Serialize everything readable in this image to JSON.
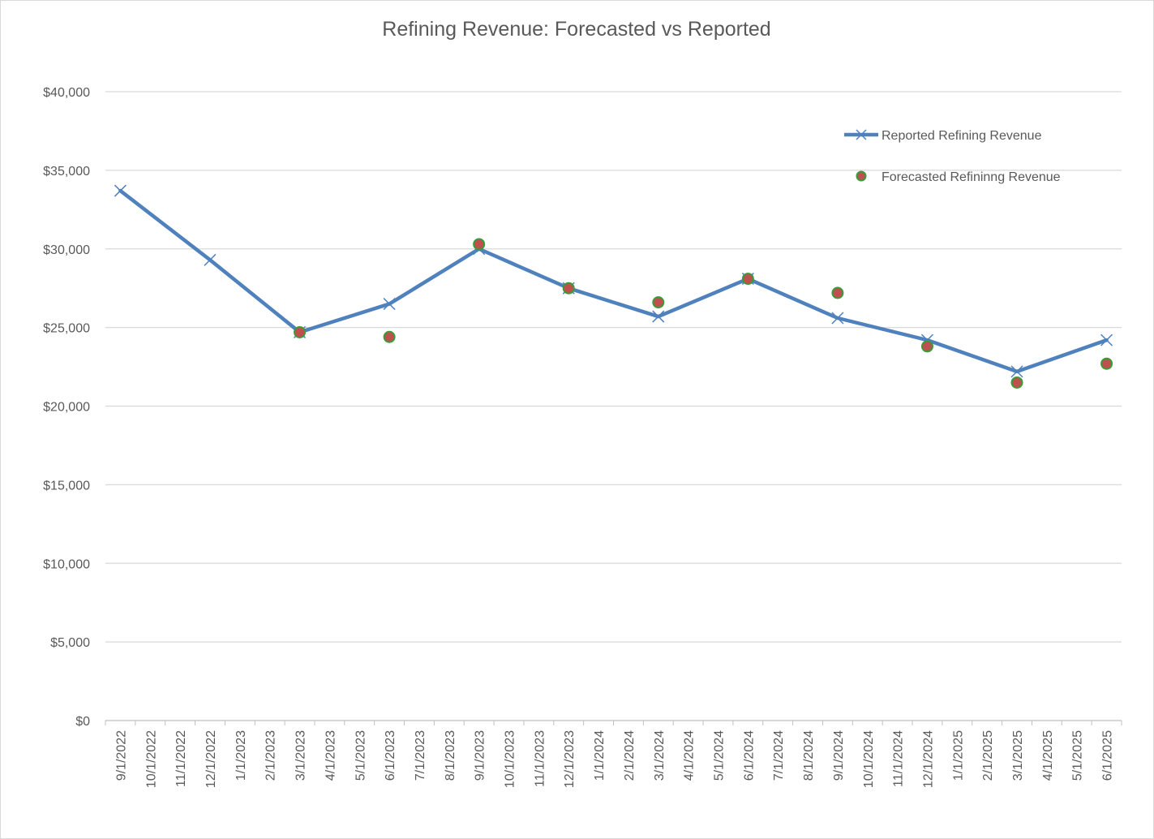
{
  "chart_data": {
    "type": "line",
    "title": "Refining Revenue: Forecasted vs Reported",
    "xlabel": "",
    "ylabel": "",
    "ylim": [
      0,
      40000
    ],
    "yticks": [
      "$0",
      "$5,000",
      "$10,000",
      "$15,000",
      "$20,000",
      "$25,000",
      "$30,000",
      "$35,000",
      "$40,000"
    ],
    "ytick_values": [
      0,
      5000,
      10000,
      15000,
      20000,
      25000,
      30000,
      35000,
      40000
    ],
    "categories": [
      "9/1/2022",
      "10/1/2022",
      "11/1/2022",
      "12/1/2022",
      "1/1/2023",
      "2/1/2023",
      "3/1/2023",
      "4/1/2023",
      "5/1/2023",
      "6/1/2023",
      "7/1/2023",
      "8/1/2023",
      "9/1/2023",
      "10/1/2023",
      "11/1/2023",
      "12/1/2023",
      "1/1/2024",
      "2/1/2024",
      "3/1/2024",
      "4/1/2024",
      "5/1/2024",
      "6/1/2024",
      "7/1/2024",
      "8/1/2024",
      "9/1/2024",
      "10/1/2024",
      "11/1/2024",
      "12/1/2024",
      "1/1/2025",
      "2/1/2025",
      "3/1/2025",
      "4/1/2025",
      "5/1/2025",
      "6/1/2025"
    ],
    "grid": true,
    "legend_position": "top-right",
    "series": [
      {
        "name": "Reported Refining Revenue",
        "style": "line-x-marker",
        "color": "#4f81bd",
        "points": [
          {
            "x": "9/1/2022",
            "y": 33700
          },
          {
            "x": "12/1/2022",
            "y": 29300
          },
          {
            "x": "3/1/2023",
            "y": 24700
          },
          {
            "x": "6/1/2023",
            "y": 26500
          },
          {
            "x": "9/1/2023",
            "y": 30000
          },
          {
            "x": "12/1/2023",
            "y": 27500
          },
          {
            "x": "3/1/2024",
            "y": 25700
          },
          {
            "x": "6/1/2024",
            "y": 28100
          },
          {
            "x": "9/1/2024",
            "y": 25600
          },
          {
            "x": "12/1/2024",
            "y": 24200
          },
          {
            "x": "3/1/2025",
            "y": 22200
          },
          {
            "x": "6/1/2025",
            "y": 24200
          }
        ]
      },
      {
        "name": "Forecasted Refininng Revenue",
        "style": "dot",
        "color": "#c0504d",
        "edge_color": "#3a9b3a",
        "points": [
          {
            "x": "3/1/2023",
            "y": 24700
          },
          {
            "x": "6/1/2023",
            "y": 24400
          },
          {
            "x": "9/1/2023",
            "y": 30300
          },
          {
            "x": "12/1/2023",
            "y": 27500
          },
          {
            "x": "3/1/2024",
            "y": 26600
          },
          {
            "x": "6/1/2024",
            "y": 28100
          },
          {
            "x": "9/1/2024",
            "y": 27200
          },
          {
            "x": "12/1/2024",
            "y": 23800
          },
          {
            "x": "3/1/2025",
            "y": 21500
          },
          {
            "x": "6/1/2025",
            "y": 22700
          }
        ]
      }
    ]
  }
}
